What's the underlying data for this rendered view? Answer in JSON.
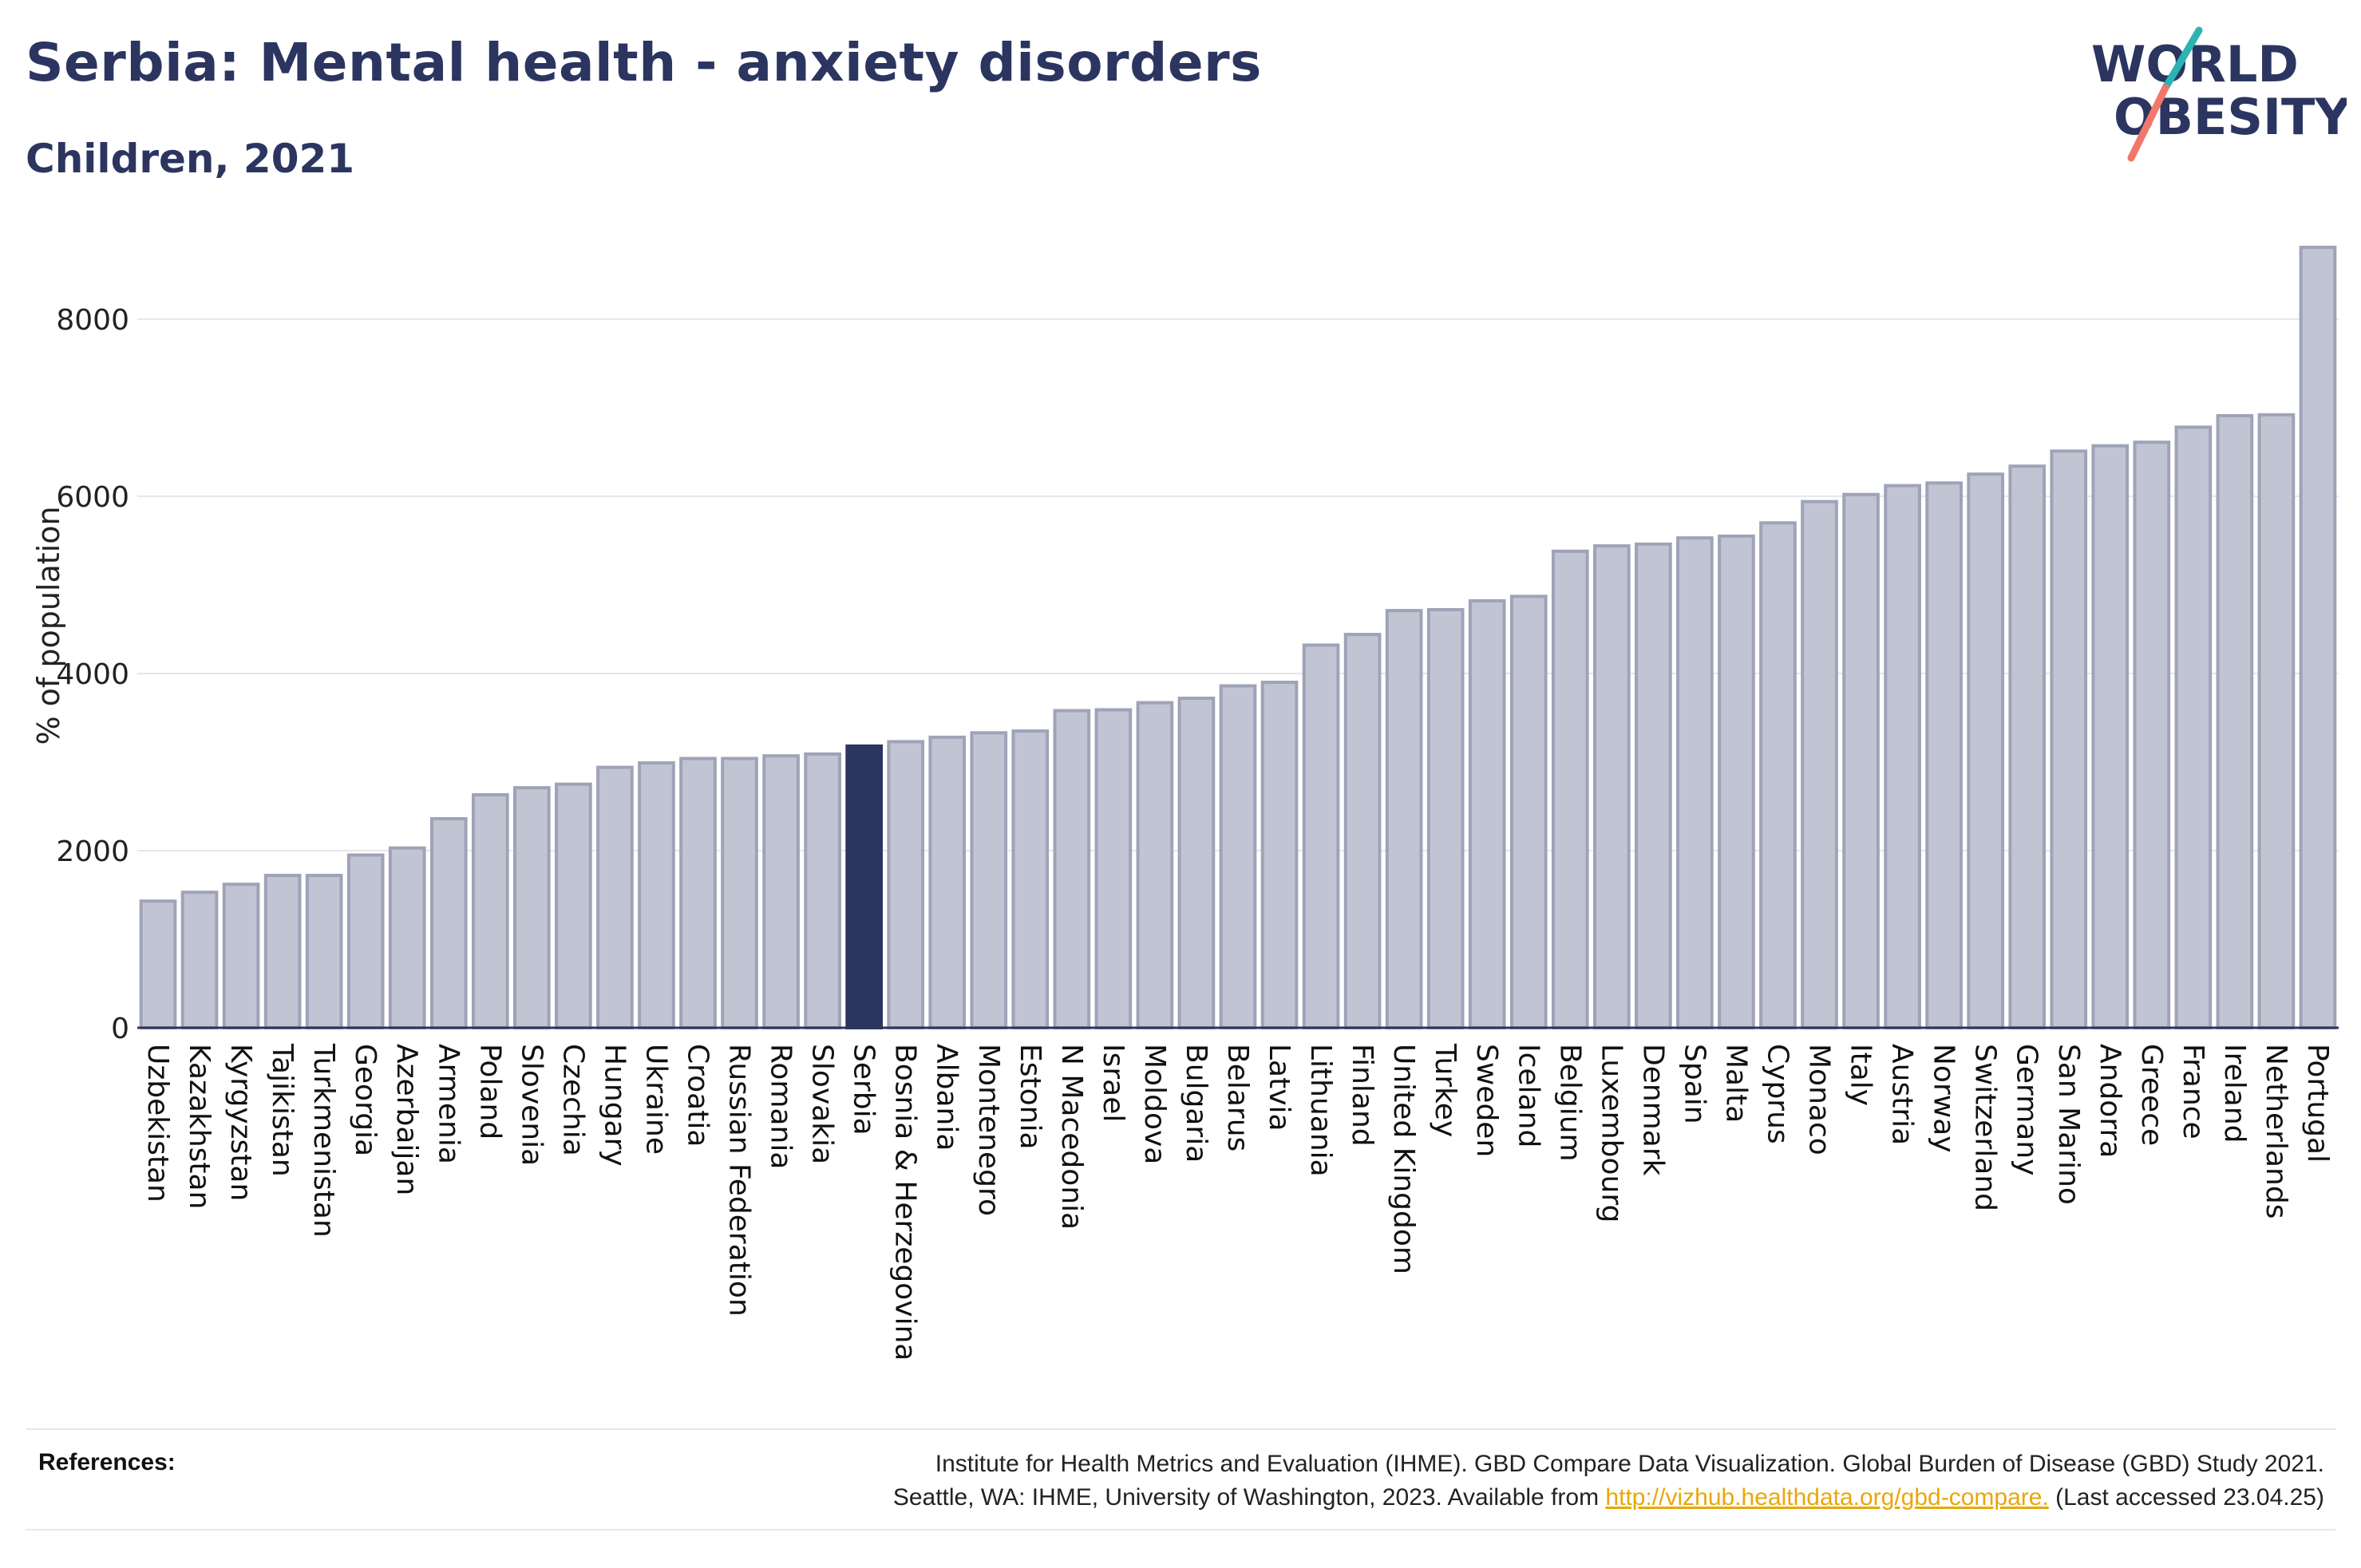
{
  "header": {
    "title": "Serbia: Mental health - anxiety disorders",
    "subtitle": "Children, 2021"
  },
  "logo": {
    "line1": "WORLD",
    "line2": "OBESITY"
  },
  "colors": {
    "highlight": "#2b3560",
    "bar": "#c1c4d2",
    "bar_edge": "#9fa3b8",
    "grid": "#e6e6ea",
    "logo_teal": "#2db3b3",
    "logo_coral": "#f0776a"
  },
  "chart_data": {
    "type": "bar",
    "title": "Serbia: Mental health - anxiety disorders",
    "subtitle": "Children, 2021",
    "xlabel": "",
    "ylabel": "% of population",
    "ylim": [
      0,
      8900
    ],
    "yticks": [
      0,
      2000,
      4000,
      6000,
      8000
    ],
    "grid": true,
    "highlight": "Serbia",
    "categories": [
      "Uzbekistan",
      "Kazakhstan",
      "Kyrgyzstan",
      "Tajikistan",
      "Turkmenistan",
      "Georgia",
      "Azerbaijan",
      "Armenia",
      "Poland",
      "Slovenia",
      "Czechia",
      "Hungary",
      "Ukraine",
      "Croatia",
      "Russian Federation",
      "Romania",
      "Slovakia",
      "Serbia",
      "Bosnia & Herzegovina",
      "Albania",
      "Montenegro",
      "Estonia",
      "N Macedonia",
      "Israel",
      "Moldova",
      "Bulgaria",
      "Belarus",
      "Latvia",
      "Lithuania",
      "Finland",
      "United Kingdom",
      "Turkey",
      "Sweden",
      "Iceland",
      "Belgium",
      "Luxembourg",
      "Denmark",
      "Spain",
      "Malta",
      "Cyprus",
      "Monaco",
      "Italy",
      "Austria",
      "Norway",
      "Switzerland",
      "Germany",
      "San Marino",
      "Andorra",
      "Greece",
      "France",
      "Ireland",
      "Netherlands",
      "Portugal"
    ],
    "values": [
      1430,
      1530,
      1620,
      1720,
      1720,
      1950,
      2030,
      2360,
      2630,
      2710,
      2750,
      2940,
      2990,
      3040,
      3040,
      3070,
      3090,
      3180,
      3230,
      3280,
      3330,
      3350,
      3580,
      3590,
      3670,
      3720,
      3860,
      3900,
      4320,
      4440,
      4710,
      4720,
      4820,
      4870,
      5380,
      5440,
      5460,
      5530,
      5550,
      5700,
      5940,
      6020,
      6120,
      6150,
      6250,
      6340,
      6510,
      6570,
      6610,
      6780,
      6910,
      6920,
      8810
    ]
  },
  "references": {
    "label": "References:",
    "line1": "Institute for Health Metrics and Evaluation (IHME). GBD Compare Data Visualization. Global Burden of Disease (GBD) Study 2021.",
    "line2_prefix": "Seattle, WA: IHME, University of Washington, 2023. Available from ",
    "link": "http://vizhub.healthdata.org/gbd-compare.",
    "line2_suffix": " (Last accessed 23.04.25)"
  }
}
